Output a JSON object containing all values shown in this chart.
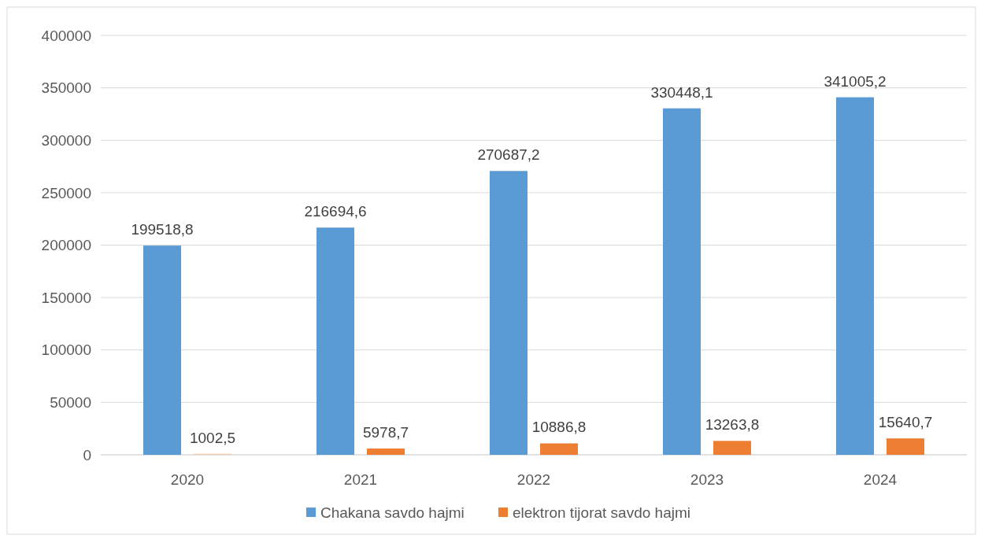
{
  "chart_data": {
    "type": "bar",
    "categories": [
      "2020",
      "2021",
      "2022",
      "2023",
      "2024"
    ],
    "series": [
      {
        "name": "Chakana savdo hajmi",
        "color": "#5b9bd5",
        "values": [
          199518.8,
          216694.6,
          270687.2,
          330448.1,
          341005.2
        ],
        "value_labels": [
          "199518,8",
          "216694,6",
          "270687,2",
          "330448,1",
          "341005,2"
        ]
      },
      {
        "name": "elektron tijorat savdo hajmi",
        "color": "#ed7d31",
        "colors": [
          "#f8cbad",
          "#ed7d31",
          "#ed7d31",
          "#ed7d31",
          "#ed7d31"
        ],
        "values": [
          1002.5,
          5978.7,
          10886.8,
          13263.8,
          15640.7
        ],
        "value_labels": [
          "1002,5",
          "5978,7",
          "10886,8",
          "13263,8",
          "15640,7"
        ]
      }
    ],
    "ylim": [
      0,
      400000
    ],
    "yticks": [
      0,
      50000,
      100000,
      150000,
      200000,
      250000,
      300000,
      350000,
      400000
    ],
    "grid": "y",
    "legend": "bottom"
  }
}
